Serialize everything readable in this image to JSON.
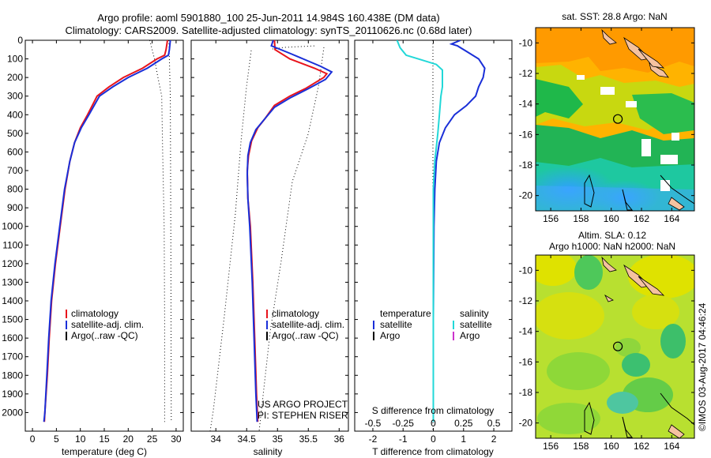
{
  "header": {
    "title_line1": "Argo profile: aoml 5901880_100 25-Jun-2011 14.984S 160.438E (DM data)",
    "title_line2": "Climatology: CARS2009. Satellite-adjusted climatology: synTS_20110626.nc (0.68d later)"
  },
  "colors": {
    "climatology": "#e8141c",
    "satellite": "#1a2fd8",
    "argo": "#000000",
    "sat_salinity": "#22d8d8",
    "argo_salinity": "#cc33cc",
    "land": "#f5c2a0"
  },
  "chart_data": [
    {
      "type": "line",
      "xlabel": "temperature (deg C)",
      "ylabel": "",
      "xlim": [
        -1.5,
        31.5
      ],
      "ylim": [
        2100,
        0
      ],
      "x_ticks": [
        0,
        5,
        10,
        15,
        20,
        25,
        30
      ],
      "y_ticks": [
        0,
        100,
        200,
        300,
        400,
        500,
        600,
        700,
        800,
        900,
        1000,
        1100,
        1200,
        1300,
        1400,
        1500,
        1600,
        1700,
        1800,
        1900,
        2000
      ],
      "legend": {
        "position": "middle",
        "entries": [
          "climatology",
          "satellite-adj. clim.",
          "Argo(..raw -QC)"
        ]
      },
      "series": [
        {
          "name": "climatology",
          "color": "#e8141c",
          "points": [
            [
              28.2,
              0
            ],
            [
              27.9,
              50
            ],
            [
              27.6,
              80
            ],
            [
              26,
              100
            ],
            [
              23,
              150
            ],
            [
              19,
              200
            ],
            [
              16,
              250
            ],
            [
              13.5,
              300
            ],
            [
              11.5,
              400
            ],
            [
              10,
              470
            ],
            [
              8.8,
              550
            ],
            [
              7.8,
              650
            ],
            [
              6.8,
              800
            ],
            [
              5.8,
              1000
            ],
            [
              4.8,
              1200
            ],
            [
              4,
              1400
            ],
            [
              3.5,
              1600
            ],
            [
              3.1,
              1800
            ],
            [
              2.6,
              2000
            ],
            [
              2.5,
              2050
            ]
          ]
        },
        {
          "name": "satellite-adj. clim.",
          "color": "#1a2fd8",
          "points": [
            [
              28.8,
              0
            ],
            [
              28.6,
              50
            ],
            [
              28.4,
              80
            ],
            [
              27,
              100
            ],
            [
              24,
              150
            ],
            [
              20,
              200
            ],
            [
              16.8,
              250
            ],
            [
              14,
              300
            ],
            [
              11.8,
              400
            ],
            [
              10.2,
              470
            ],
            [
              8.8,
              550
            ],
            [
              7.8,
              650
            ],
            [
              6.7,
              800
            ],
            [
              5.7,
              1000
            ],
            [
              4.7,
              1200
            ],
            [
              3.9,
              1400
            ],
            [
              3.4,
              1600
            ],
            [
              3,
              1800
            ],
            [
              2.6,
              2000
            ],
            [
              2.4,
              2050
            ]
          ]
        }
      ],
      "dotted_envelope": {
        "lower": [
          [
            24.5,
            0
          ],
          [
            25,
            50
          ],
          [
            25.5,
            100
          ],
          [
            26.2,
            200
          ],
          [
            27,
            300
          ],
          [
            27.2,
            600
          ],
          [
            27.5,
            1000
          ],
          [
            27.6,
            1500
          ],
          [
            27.6,
            2050
          ]
        ],
        "upper": [
          [
            28.5,
            0
          ],
          [
            28.6,
            100
          ],
          [
            28.8,
            300
          ],
          [
            28.9,
            1000
          ],
          [
            29,
            2050
          ]
        ]
      }
    },
    {
      "type": "line",
      "xlabel": "salinity",
      "ylabel": "",
      "xlim": [
        33.6,
        36.15
      ],
      "ylim": [
        2100,
        0
      ],
      "x_ticks": [
        34,
        34.5,
        35,
        35.5,
        36
      ],
      "x_tick_labels": [
        "34",
        "34.5",
        "35",
        "35.5",
        "36"
      ],
      "legend": {
        "position": "middle",
        "entries": [
          "climatology",
          "satellite-adj. clim.",
          "Argo(..raw -QC)"
        ]
      },
      "annotation": [
        "US ARGO PROJECT",
        "PI: STEPHEN RISER"
      ],
      "series": [
        {
          "name": "climatology",
          "color": "#e8141c",
          "points": [
            [
              34.95,
              0
            ],
            [
              34.96,
              50
            ],
            [
              35.2,
              100
            ],
            [
              35.6,
              150
            ],
            [
              35.8,
              180
            ],
            [
              35.75,
              200
            ],
            [
              35.45,
              260
            ],
            [
              35.2,
              300
            ],
            [
              34.95,
              350
            ],
            [
              34.8,
              420
            ],
            [
              34.68,
              470
            ],
            [
              34.58,
              540
            ],
            [
              34.53,
              620
            ],
            [
              34.51,
              700
            ],
            [
              34.52,
              850
            ],
            [
              34.56,
              1000
            ],
            [
              34.6,
              1300
            ],
            [
              34.63,
              1600
            ],
            [
              34.66,
              1900
            ],
            [
              34.68,
              2050
            ]
          ]
        },
        {
          "name": "satellite-adj. clim.",
          "color": "#1a2fd8",
          "points": [
            [
              34.93,
              0
            ],
            [
              34.9,
              30
            ],
            [
              35.2,
              70
            ],
            [
              35.7,
              140
            ],
            [
              35.88,
              170
            ],
            [
              35.78,
              210
            ],
            [
              35.5,
              260
            ],
            [
              35.2,
              310
            ],
            [
              34.95,
              360
            ],
            [
              34.8,
              420
            ],
            [
              34.65,
              480
            ],
            [
              34.56,
              550
            ],
            [
              34.52,
              620
            ],
            [
              34.51,
              720
            ],
            [
              34.52,
              850
            ],
            [
              34.55,
              1000
            ],
            [
              34.59,
              1300
            ],
            [
              34.62,
              1600
            ],
            [
              34.65,
              1900
            ],
            [
              34.67,
              2050
            ]
          ]
        }
      ]
    },
    {
      "type": "line",
      "xlabel": "T difference from climatology",
      "top_label": "S difference from climatology",
      "xlim": [
        -2.6,
        2.6
      ],
      "ylim": [
        2100,
        0
      ],
      "x_ticks": [
        -2,
        -1,
        0,
        1,
        2
      ],
      "top_ticks": [
        -0.5,
        -0.25,
        0,
        0.25,
        0.5
      ],
      "top_tick_labels": [
        "-0.5",
        "-0.25",
        "0",
        "0.25",
        "0.5"
      ],
      "legend": {
        "position": "middle",
        "temperature_title": "temperature",
        "salinity_title": "salinity",
        "entries": [
          "satellite",
          "Argo"
        ]
      },
      "series": [
        {
          "name": "temperature satellite",
          "color": "#1a2fd8",
          "points": [
            [
              0.9,
              0
            ],
            [
              0.6,
              20
            ],
            [
              0.8,
              30
            ],
            [
              1.1,
              60
            ],
            [
              1.5,
              100
            ],
            [
              1.7,
              150
            ],
            [
              1.65,
              200
            ],
            [
              1.5,
              250
            ],
            [
              1.4,
              300
            ],
            [
              1.1,
              350
            ],
            [
              0.7,
              400
            ],
            [
              0.4,
              470
            ],
            [
              0.2,
              550
            ],
            [
              0.1,
              650
            ],
            [
              0.05,
              800
            ],
            [
              0.02,
              1000
            ],
            [
              0,
              1500
            ],
            [
              0,
              2050
            ]
          ]
        },
        {
          "name": "salinity satellite",
          "color": "#22d8d8",
          "points": [
            [
              -1.2,
              0
            ],
            [
              -1.1,
              40
            ],
            [
              -0.9,
              80
            ],
            [
              -0.5,
              100
            ],
            [
              0.1,
              130
            ],
            [
              0.3,
              160
            ],
            [
              0.3,
              250
            ],
            [
              0.25,
              300
            ],
            [
              0.2,
              400
            ],
            [
              0.15,
              500
            ],
            [
              0.05,
              650
            ],
            [
              0,
              800
            ],
            [
              0,
              1000
            ],
            [
              0,
              1500
            ],
            [
              0,
              2050
            ]
          ]
        }
      ]
    },
    {
      "type": "heatmap",
      "title": "sat. SST: 28.8 Argo: NaN",
      "xlim": [
        155.0,
        165.5
      ],
      "ylim": [
        -21,
        -9
      ],
      "x_ticks": [
        156,
        158,
        160,
        162,
        164
      ],
      "y_ticks": [
        -10,
        -12,
        -14,
        -16,
        -18,
        -20
      ],
      "marker": [
        160.438,
        -14.984
      ]
    },
    {
      "type": "heatmap",
      "title_line1": "Altim. SLA: 0.12",
      "title_line2": "Argo h1000: NaN h2000: NaN",
      "xlim": [
        155.0,
        165.5
      ],
      "ylim": [
        -21,
        -9
      ],
      "x_ticks": [
        156,
        158,
        160,
        162,
        164
      ],
      "y_ticks": [
        -10,
        -12,
        -14,
        -16,
        -18,
        -20
      ],
      "marker": [
        160.438,
        -14.984
      ]
    }
  ],
  "footer": {
    "credit": "©IMOS 03-Aug-2017 04:46:24"
  }
}
